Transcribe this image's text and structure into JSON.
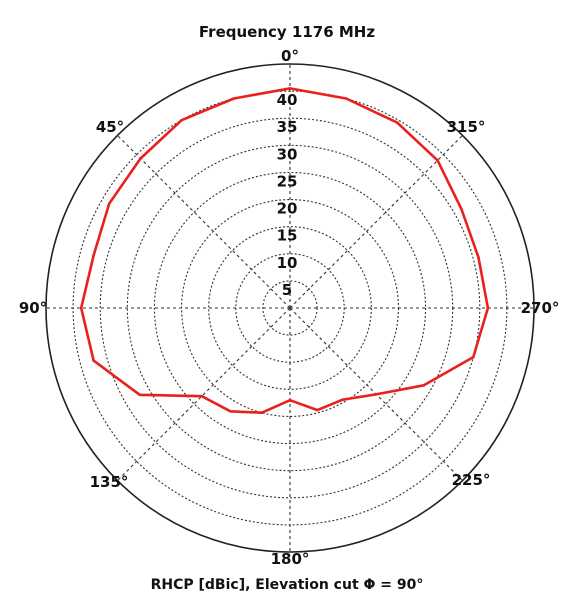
{
  "chart_data": {
    "type": "polar-line",
    "title": "Frequency 1176 MHz",
    "xlabel": "RHCP [dBic], Elevation cut Φ = 90°",
    "radial_ticks": [
      "5",
      "10",
      "15",
      "20",
      "25",
      "30",
      "35",
      "40"
    ],
    "rlim": [
      0,
      45
    ],
    "angle_labels": [
      "0°",
      "45°",
      "90°",
      "135°",
      "180°",
      "225°",
      "270°",
      "315°"
    ],
    "grid": true,
    "series": [
      {
        "color": "#e8211f",
        "points": [
          {
            "theta": 0,
            "r": 40.5
          },
          {
            "theta": 15,
            "r": 40.0
          },
          {
            "theta": 30,
            "r": 40.0
          },
          {
            "theta": 45,
            "r": 39.0
          },
          {
            "theta": 60,
            "r": 38.5
          },
          {
            "theta": 75,
            "r": 37.5
          },
          {
            "theta": 90,
            "r": 38.5
          },
          {
            "theta": 105,
            "r": 37.5
          },
          {
            "theta": 120,
            "r": 32.0
          },
          {
            "theta": 135,
            "r": 23.0
          },
          {
            "theta": 150,
            "r": 22.0
          },
          {
            "theta": 165,
            "r": 20.0
          },
          {
            "theta": 180,
            "r": 17.0
          },
          {
            "theta": 195,
            "r": 19.5
          },
          {
            "theta": 210,
            "r": 19.5
          },
          {
            "theta": 225,
            "r": 22.5
          },
          {
            "theta": 240,
            "r": 28.5
          },
          {
            "theta": 255,
            "r": 35.0
          },
          {
            "theta": 270,
            "r": 36.5
          },
          {
            "theta": 285,
            "r": 36.0
          },
          {
            "theta": 300,
            "r": 36.5
          },
          {
            "theta": 315,
            "r": 38.5
          },
          {
            "theta": 330,
            "r": 39.5
          },
          {
            "theta": 345,
            "r": 40.0
          }
        ]
      }
    ]
  }
}
